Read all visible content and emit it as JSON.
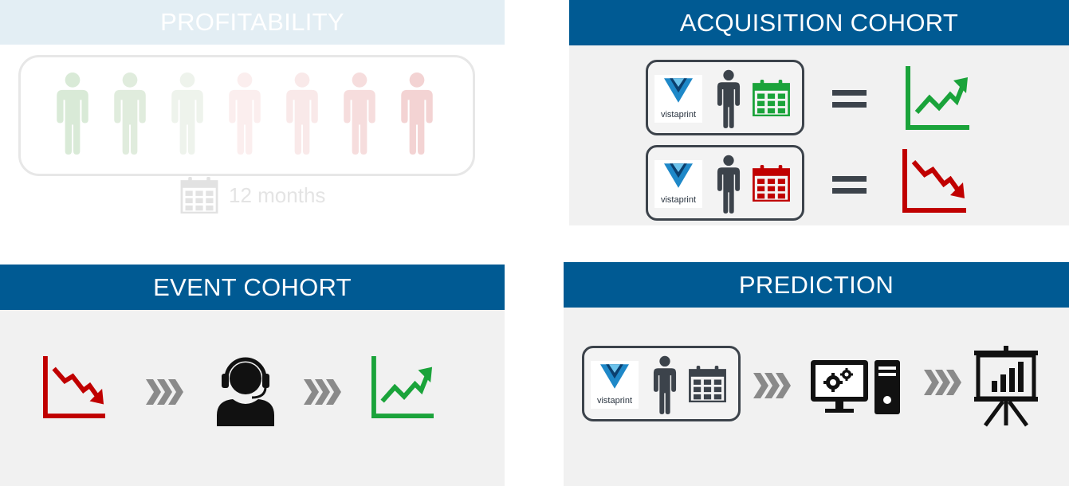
{
  "sections": {
    "profitability": {
      "title": "PROFITABILITY",
      "period_label": "12 months"
    },
    "acquisition": {
      "title": "ACQUISITION COHORT"
    },
    "event": {
      "title": "EVENT COHORT"
    },
    "prediction": {
      "title": "PREDICTION"
    }
  },
  "brand": {
    "name": "vistaprint"
  },
  "colors": {
    "header_blue": "#005a93",
    "panel_gray": "#f1f1f1",
    "growth_green": "#1aa33a",
    "decline_red": "#c00000",
    "icon_dark": "#3c434b",
    "chevron_gray": "#8a8a8a",
    "vista_blue": "#1e88c8"
  },
  "icons": {
    "person": "person-icon",
    "calendar": "calendar-icon",
    "trend_up": "trend-up-chart-icon",
    "trend_down": "trend-down-chart-icon",
    "equals": "equals-icon",
    "chevrons": "triple-chevron-arrow-icon",
    "support_agent": "headset-agent-icon",
    "computer": "computer-gears-icon",
    "presentation": "presentation-chart-icon"
  }
}
